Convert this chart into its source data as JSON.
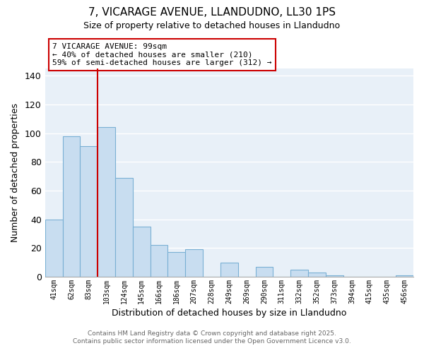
{
  "title": "7, VICARAGE AVENUE, LLANDUDNO, LL30 1PS",
  "subtitle": "Size of property relative to detached houses in Llandudno",
  "xlabel": "Distribution of detached houses by size in Llandudno",
  "ylabel": "Number of detached properties",
  "bar_color": "#c8ddf0",
  "bar_edge_color": "#7ab0d4",
  "categories": [
    "41sqm",
    "62sqm",
    "83sqm",
    "103sqm",
    "124sqm",
    "145sqm",
    "166sqm",
    "186sqm",
    "207sqm",
    "228sqm",
    "249sqm",
    "269sqm",
    "290sqm",
    "311sqm",
    "332sqm",
    "352sqm",
    "373sqm",
    "394sqm",
    "415sqm",
    "435sqm",
    "456sqm"
  ],
  "values": [
    40,
    98,
    91,
    104,
    69,
    35,
    22,
    17,
    19,
    0,
    10,
    0,
    7,
    0,
    5,
    3,
    1,
    0,
    0,
    0,
    1
  ],
  "ylim": [
    0,
    145
  ],
  "yticks": [
    0,
    20,
    40,
    60,
    80,
    100,
    120,
    140
  ],
  "vline_color": "#cc0000",
  "vline_x_index": 3,
  "annotation_text": "7 VICARAGE AVENUE: 99sqm\n← 40% of detached houses are smaller (210)\n59% of semi-detached houses are larger (312) →",
  "annotation_box_color": "#ffffff",
  "annotation_box_edge": "#cc0000",
  "footer1": "Contains HM Land Registry data © Crown copyright and database right 2025.",
  "footer2": "Contains public sector information licensed under the Open Government Licence v3.0.",
  "fig_background_color": "#ffffff",
  "plot_background_color": "#e8f0f8",
  "grid_color": "#ffffff"
}
